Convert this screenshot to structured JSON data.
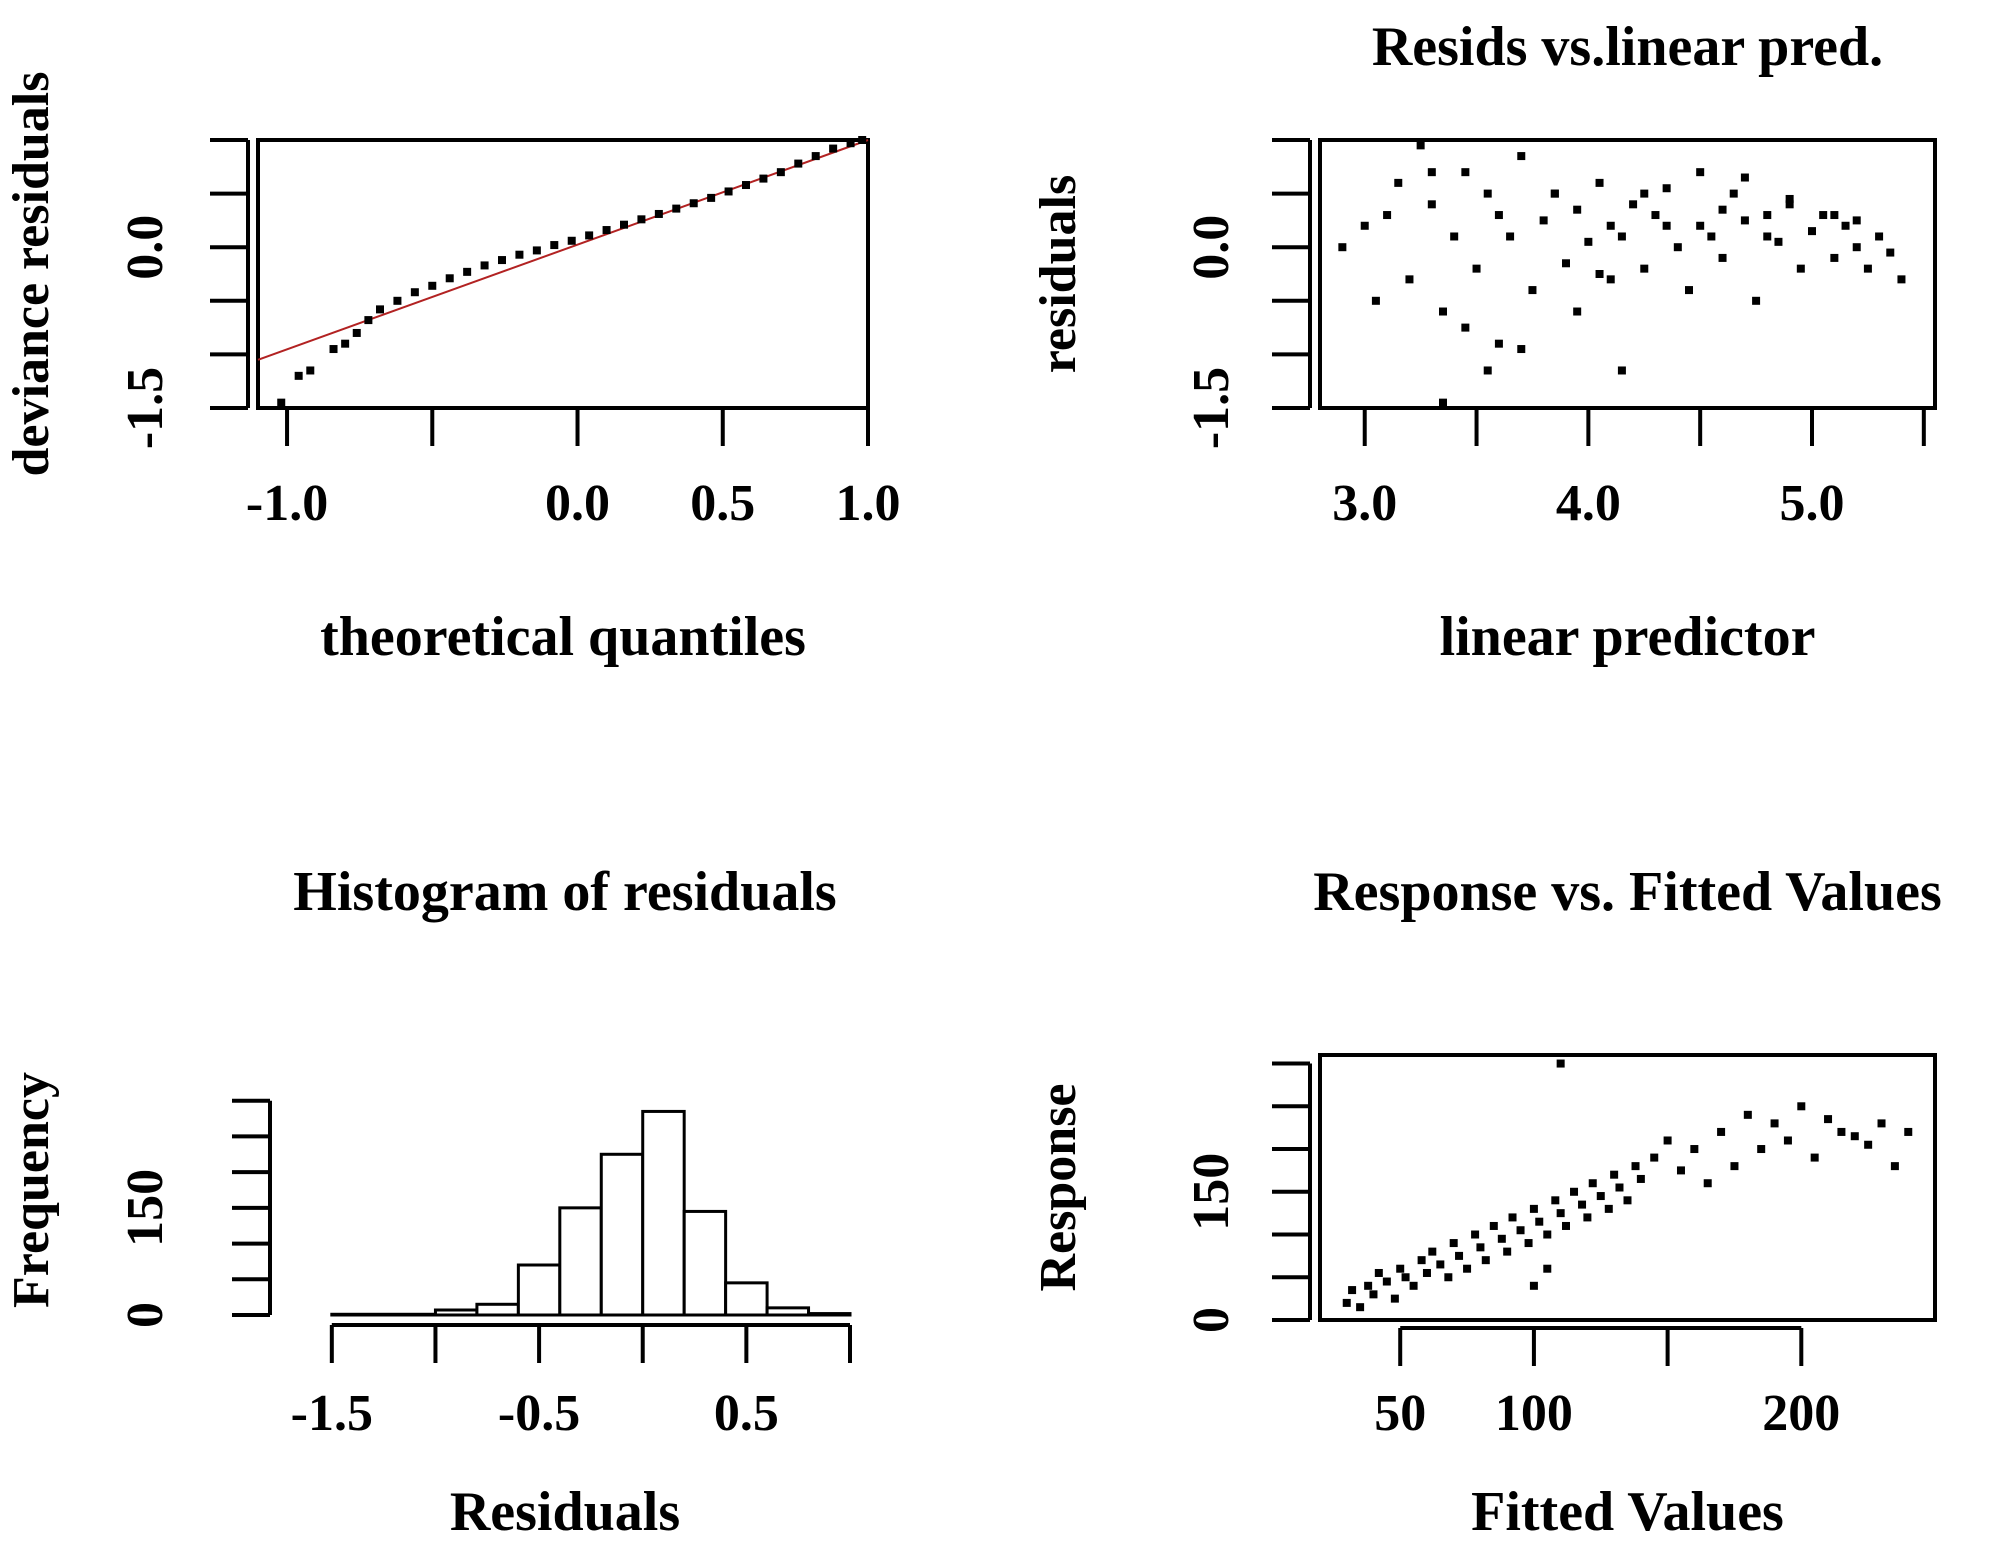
{
  "chart_data": [
    {
      "id": "qq",
      "type": "scatter",
      "title": "",
      "xlabel": "theoretical quantiles",
      "ylabel": "deviance residuals",
      "xlim": [
        -1.1,
        1.0
      ],
      "ylim": [
        -1.5,
        1.0
      ],
      "x_ticks": [
        -1.0,
        -0.5,
        0.0,
        0.5,
        1.0
      ],
      "x_tick_labels": [
        "-1.0",
        "",
        "0.0",
        "0.5",
        "1.0"
      ],
      "y_ticks": [
        -1.5,
        -1.0,
        -0.5,
        0.0,
        0.5,
        1.0
      ],
      "y_tick_labels": [
        "-1.5",
        "",
        "",
        "0.0",
        "",
        ""
      ],
      "reference_line": {
        "color": "#b22222",
        "x": [
          -1.1,
          1.0
        ],
        "y": [
          -1.05,
          1.0
        ]
      },
      "points": {
        "x": [
          -1.02,
          -0.96,
          -0.92,
          -0.84,
          -0.8,
          -0.76,
          -0.72,
          -0.68,
          -0.62,
          -0.56,
          -0.5,
          -0.44,
          -0.38,
          -0.32,
          -0.26,
          -0.2,
          -0.14,
          -0.08,
          -0.02,
          0.04,
          0.1,
          0.16,
          0.22,
          0.28,
          0.34,
          0.4,
          0.46,
          0.52,
          0.58,
          0.64,
          0.7,
          0.76,
          0.82,
          0.88,
          0.94,
          0.98
        ],
        "y": [
          -1.45,
          -1.2,
          -1.15,
          -0.95,
          -0.9,
          -0.8,
          -0.68,
          -0.58,
          -0.5,
          -0.42,
          -0.36,
          -0.29,
          -0.23,
          -0.17,
          -0.12,
          -0.07,
          -0.03,
          0.02,
          0.06,
          0.11,
          0.16,
          0.21,
          0.26,
          0.31,
          0.36,
          0.41,
          0.46,
          0.52,
          0.58,
          0.64,
          0.7,
          0.78,
          0.85,
          0.92,
          0.97,
          1.0
        ]
      }
    },
    {
      "id": "resid-lp",
      "type": "scatter",
      "title": "Resids vs.linear pred.",
      "xlabel": "linear predictor",
      "ylabel": "residuals",
      "xlim": [
        2.8,
        5.55
      ],
      "ylim": [
        -1.5,
        1.0
      ],
      "x_ticks": [
        3.0,
        3.5,
        4.0,
        4.5,
        5.0,
        5.5
      ],
      "x_tick_labels": [
        "3.0",
        "",
        "4.0",
        "",
        "5.0",
        ""
      ],
      "y_ticks": [
        -1.5,
        -1.0,
        -0.5,
        0.0,
        0.5,
        1.0
      ],
      "y_tick_labels": [
        "-1.5",
        "",
        "",
        "0.0",
        "",
        ""
      ],
      "points": {
        "x": [
          2.9,
          3.0,
          3.05,
          3.1,
          3.15,
          3.2,
          3.25,
          3.3,
          3.35,
          3.35,
          3.4,
          3.45,
          3.5,
          3.55,
          3.6,
          3.6,
          3.65,
          3.7,
          3.75,
          3.8,
          3.85,
          3.9,
          3.95,
          4.0,
          4.05,
          4.1,
          4.1,
          4.15,
          4.2,
          4.25,
          4.3,
          4.35,
          4.4,
          4.45,
          4.5,
          4.5,
          4.55,
          4.6,
          4.65,
          4.7,
          4.75,
          4.8,
          4.85,
          4.9,
          4.95,
          5.0,
          5.05,
          5.1,
          5.15,
          5.2,
          5.25,
          5.3,
          5.35,
          5.4,
          3.3,
          3.55,
          3.7,
          4.15,
          3.45,
          3.95,
          4.7,
          4.25,
          4.6,
          4.9,
          5.1,
          3.85,
          4.35,
          4.8,
          5.2,
          4.05
        ],
        "y": [
          0.0,
          0.2,
          -0.5,
          0.3,
          0.6,
          -0.3,
          0.95,
          0.4,
          -1.45,
          -0.6,
          0.1,
          0.7,
          -0.2,
          0.5,
          -0.9,
          0.3,
          0.1,
          0.85,
          -0.4,
          0.25,
          0.5,
          -0.15,
          0.35,
          0.05,
          0.6,
          -0.3,
          0.2,
          0.1,
          0.4,
          -0.2,
          0.3,
          0.55,
          0.0,
          -0.4,
          0.2,
          0.7,
          0.1,
          -0.1,
          0.5,
          0.25,
          -0.5,
          0.3,
          0.05,
          0.45,
          -0.2,
          0.15,
          0.3,
          -0.1,
          0.2,
          0.0,
          -0.2,
          0.1,
          -0.05,
          -0.3,
          0.7,
          -1.15,
          -0.95,
          -1.15,
          -0.75,
          -0.6,
          0.65,
          0.5,
          0.35,
          0.4,
          0.3,
          0.5,
          0.2,
          0.1,
          0.25,
          -0.25
        ]
      }
    },
    {
      "id": "hist",
      "type": "bar",
      "title": "Histogram of residuals",
      "xlabel": "Residuals",
      "ylabel": "Frequency",
      "xlim": [
        -1.75,
        1.0
      ],
      "ylim": [
        0,
        350
      ],
      "x_ticks": [
        -1.5,
        -1.0,
        -0.5,
        0.0,
        0.5,
        1.0
      ],
      "x_tick_labels": [
        "-1.5",
        "",
        "-0.5",
        "",
        "0.5",
        ""
      ],
      "y_ticks": [
        0,
        50,
        100,
        150,
        200,
        250,
        300
      ],
      "y_tick_labels": [
        "0",
        "",
        "",
        "150",
        "",
        "",
        ""
      ],
      "bin_edges": [
        -1.5,
        -1.0,
        -0.8,
        -0.6,
        -0.4,
        -0.2,
        0.0,
        0.2,
        0.4,
        0.6,
        0.8,
        1.0
      ],
      "values": [
        1,
        7,
        15,
        70,
        150,
        225,
        285,
        145,
        45,
        10,
        2
      ]
    },
    {
      "id": "resp-fitted",
      "type": "scatter",
      "title": "Response vs. Fitted Values",
      "xlabel": "Fitted Values",
      "ylabel": "Response",
      "xlim": [
        20,
        250
      ],
      "ylim": [
        0,
        310
      ],
      "x_ticks": [
        50,
        100,
        150,
        200
      ],
      "x_tick_labels": [
        "50",
        "100",
        "",
        "200"
      ],
      "y_ticks": [
        0,
        50,
        100,
        150,
        200,
        250,
        300
      ],
      "y_tick_labels": [
        "0",
        "",
        "",
        "150",
        "",
        "",
        ""
      ],
      "points": {
        "x": [
          30,
          32,
          35,
          38,
          40,
          42,
          45,
          48,
          50,
          52,
          55,
          58,
          60,
          62,
          65,
          68,
          70,
          72,
          75,
          78,
          80,
          82,
          85,
          88,
          90,
          92,
          95,
          98,
          100,
          102,
          105,
          108,
          110,
          112,
          115,
          118,
          120,
          122,
          125,
          128,
          130,
          132,
          135,
          138,
          140,
          145,
          150,
          155,
          160,
          165,
          170,
          175,
          180,
          185,
          190,
          195,
          200,
          205,
          210,
          215,
          220,
          225,
          230,
          235,
          240,
          110,
          105,
          100
        ],
        "y": [
          20,
          35,
          15,
          40,
          30,
          55,
          45,
          25,
          60,
          50,
          40,
          70,
          55,
          80,
          65,
          50,
          90,
          75,
          60,
          100,
          85,
          70,
          110,
          95,
          80,
          120,
          105,
          90,
          130,
          115,
          100,
          140,
          125,
          110,
          150,
          135,
          120,
          160,
          145,
          130,
          170,
          155,
          140,
          180,
          165,
          190,
          210,
          175,
          200,
          160,
          220,
          180,
          240,
          200,
          230,
          210,
          250,
          190,
          235,
          220,
          215,
          205,
          230,
          180,
          220,
          300,
          60,
          40
        ]
      }
    }
  ]
}
